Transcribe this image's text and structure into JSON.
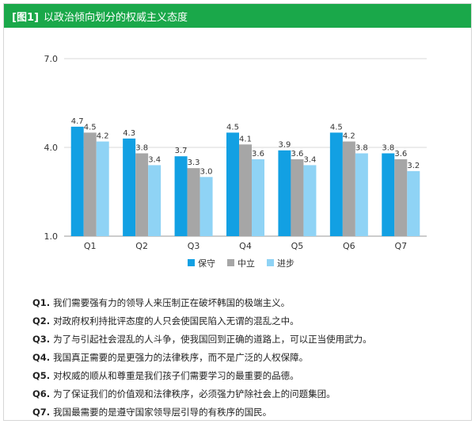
{
  "header": {
    "tag": "[图1]",
    "title": "以政治倾向划分的权威主义态度"
  },
  "chart_data": {
    "type": "bar",
    "title": "",
    "xlabel": "",
    "ylabel": "",
    "ylim": [
      1.0,
      7.0
    ],
    "yticks": [
      "1.0",
      "4.0",
      "7.0"
    ],
    "ytick_values": [
      1.0,
      4.0,
      7.0
    ],
    "categories": [
      "Q1",
      "Q2",
      "Q3",
      "Q4",
      "Q5",
      "Q6",
      "Q7"
    ],
    "series": [
      {
        "name": "保守",
        "color": "#12a0e3",
        "values": [
          4.7,
          4.3,
          3.7,
          4.5,
          3.9,
          4.5,
          3.8
        ]
      },
      {
        "name": "中立",
        "color": "#a6a6a6",
        "values": [
          4.5,
          3.8,
          3.3,
          4.1,
          3.6,
          4.2,
          3.6
        ]
      },
      {
        "name": "进步",
        "color": "#8fd3f5",
        "values": [
          4.2,
          3.4,
          3.0,
          3.6,
          3.4,
          3.8,
          3.2
        ]
      }
    ],
    "legend_position": "bottom",
    "grid": true
  },
  "notes": [
    {
      "q": "Q1.",
      "text": "我们需要强有力的领导人来压制正在破坏韩国的极端主义。"
    },
    {
      "q": "Q2.",
      "text": "对政府权利持批评态度的人只会使国民陷入无谓的混乱之中。"
    },
    {
      "q": "Q3.",
      "text": "为了与引起社会混乱的人斗争，使我国回到正确的道路上，可以正当使用武力。"
    },
    {
      "q": "Q4.",
      "text": "我国真正需要的是更强力的法律秩序，而不是广泛的人权保障。"
    },
    {
      "q": "Q5.",
      "text": "对权威的顺从和尊重是我们孩子们需要学习的最重要的品德。"
    },
    {
      "q": "Q6.",
      "text": "为了保证我们的价值观和法律秩序，必须强力铲除社会上的问题集团。"
    },
    {
      "q": "Q7.",
      "text": "我国最需要的是遵守国家领导层引导的有秩序的国民。"
    }
  ]
}
